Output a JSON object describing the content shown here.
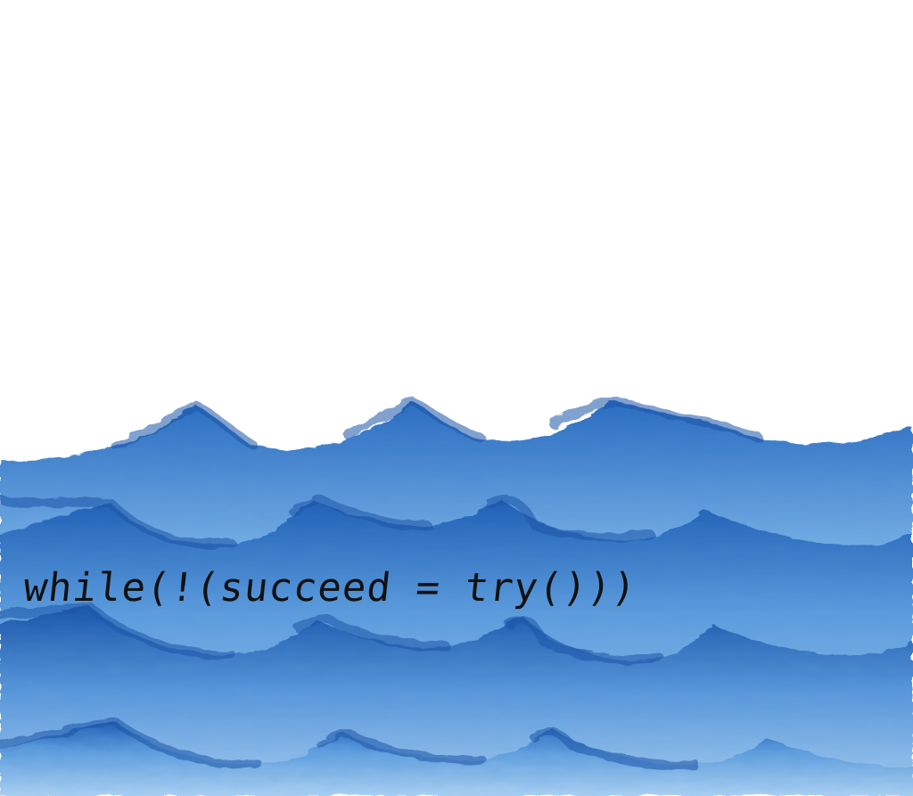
{
  "illustration": {
    "subject": "watercolor-ocean-waves",
    "colors": {
      "sky": "#ffffff",
      "wave_dark": "#1d5fb4",
      "wave_mid": "#4a8fd6",
      "wave_light": "#9cc8ef"
    }
  },
  "caption": {
    "text": "while(!(succeed = try()))"
  }
}
